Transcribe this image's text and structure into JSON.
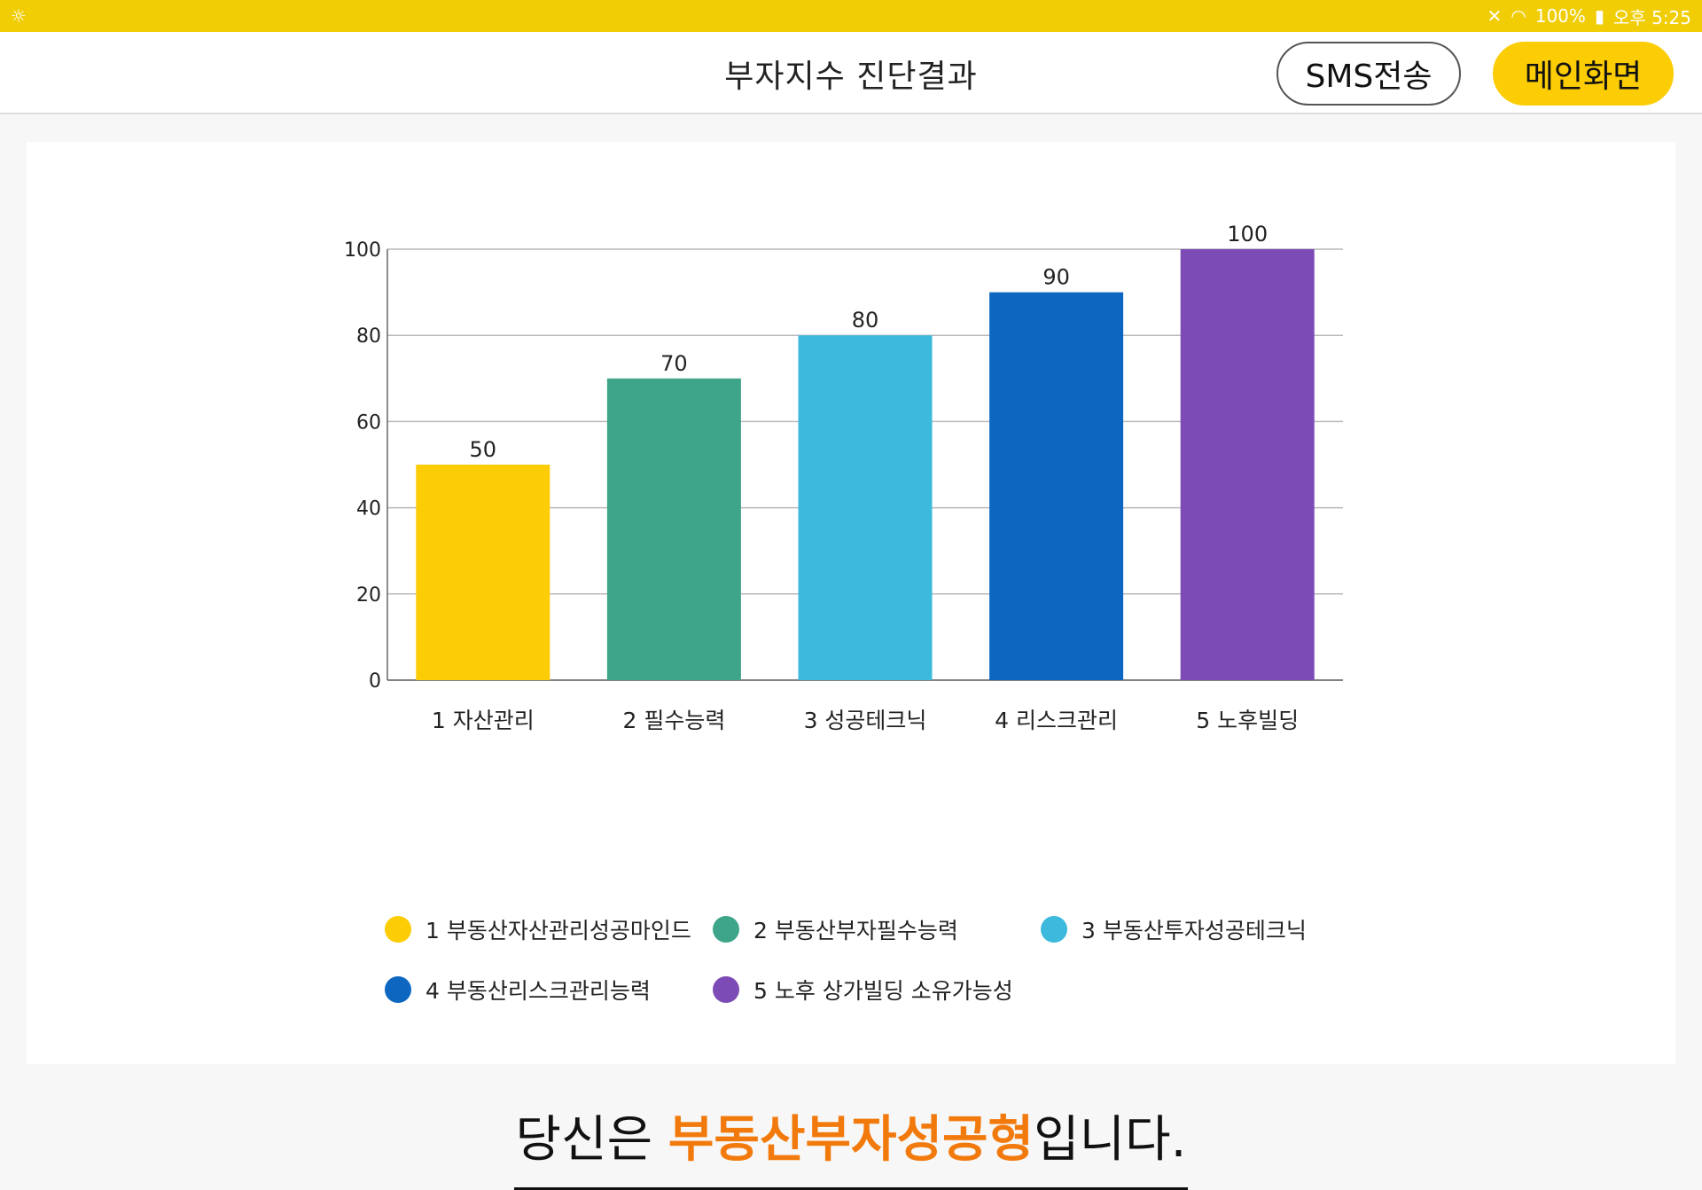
{
  "status_bar": {
    "left_icon": "brightness-icon",
    "battery": "100%",
    "time": "오후 5:25",
    "icons": [
      "mute-icon",
      "wifi-icon",
      "battery-icon"
    ]
  },
  "header": {
    "title": "부자지수 진단결과",
    "sms_button": "SMS전송",
    "main_button": "메인화면"
  },
  "chart_data": {
    "type": "bar",
    "categories": [
      "1 자산관리",
      "2 필수능력",
      "3 성공테크닉",
      "4 리스크관리",
      "5 노후빌딩"
    ],
    "values": [
      50,
      70,
      80,
      90,
      100
    ],
    "data_labels": [
      "50",
      "70",
      "80",
      "90",
      "100"
    ],
    "colors": [
      "#fccc05",
      "#3ea58a",
      "#3cb9dc",
      "#0d67c1",
      "#7d4bb6"
    ],
    "ylim": [
      0,
      100
    ],
    "yticks": [
      0,
      20,
      40,
      60,
      80,
      100
    ],
    "ytick_labels": [
      "0",
      "20",
      "40",
      "60",
      "80",
      "100"
    ],
    "grid": true,
    "legend_position": "bottom",
    "legend": [
      {
        "label": "1 부동산자산관리성공마인드",
        "color": "#fccc05"
      },
      {
        "label": "2 부동산부자필수능력",
        "color": "#3ea58a"
      },
      {
        "label": "3 부동산투자성공테크닉",
        "color": "#3cb9dc"
      },
      {
        "label": "4 부동산리스크관리능력",
        "color": "#0d67c1"
      },
      {
        "label": "5 노후 상가빌딩 소유가능성",
        "color": "#7d4bb6"
      }
    ]
  },
  "result": {
    "prefix": "당신은 ",
    "type_name": "부동산부자성공형",
    "suffix": "입니다."
  }
}
